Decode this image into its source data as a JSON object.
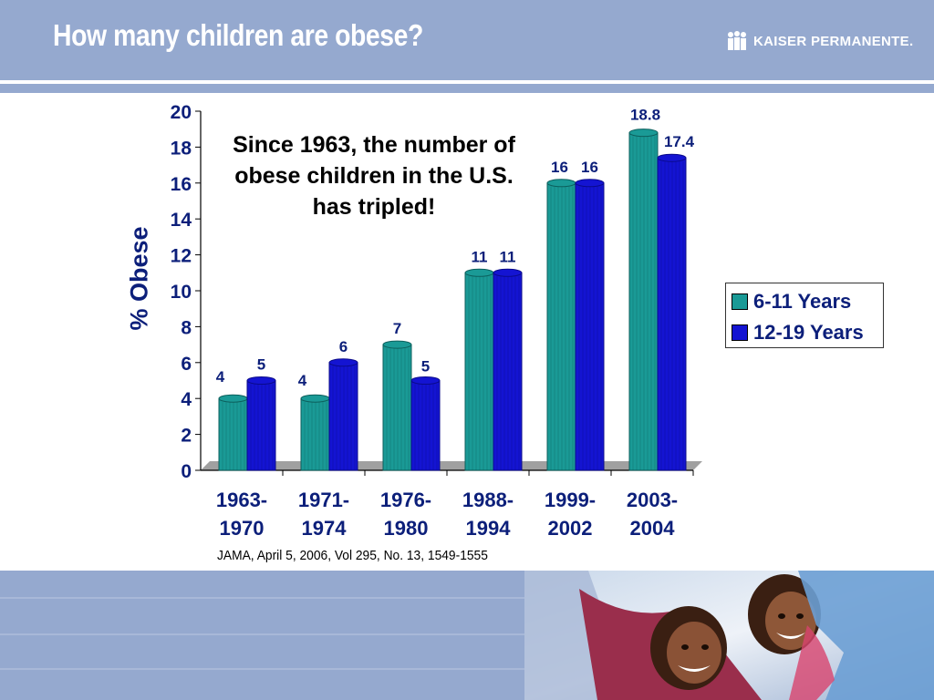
{
  "header": {
    "title": "How many children are obese?"
  },
  "logo": {
    "text": "KAISER PERMANENTE."
  },
  "annotation": {
    "text": "Since 1963, the number of obese children in the U.S. has tripled!"
  },
  "source": {
    "text": "JAMA, April 5, 2006, Vol 295, No. 13, 1549-1555"
  },
  "colors": {
    "header": "#95a9cf",
    "series1": "#1a9a96",
    "series2": "#1414d2",
    "text": "#0c1f7a"
  },
  "chart_data": {
    "type": "bar",
    "title": "",
    "xlabel": "",
    "ylabel": "% Obese",
    "ylim": [
      0,
      20
    ],
    "yticks": [
      0,
      2,
      4,
      6,
      8,
      10,
      12,
      14,
      16,
      18,
      20
    ],
    "categories": [
      [
        "1963-",
        "1970"
      ],
      [
        "1971-",
        "1974"
      ],
      [
        "1976-",
        "1980"
      ],
      [
        "1988-",
        "1994"
      ],
      [
        "1999-",
        "2002"
      ],
      [
        "2003-",
        "2004"
      ]
    ],
    "series": [
      {
        "name": "6-11 Years",
        "values": [
          4,
          4,
          7,
          11,
          16,
          18.8
        ]
      },
      {
        "name": "12-19 Years",
        "values": [
          5,
          6,
          5,
          11,
          16,
          17.4
        ]
      }
    ],
    "legend": "right",
    "grid": false
  }
}
